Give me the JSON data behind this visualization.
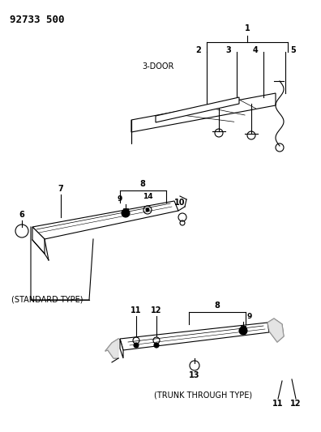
{
  "bg_color": "#ffffff",
  "line_color": "#000000",
  "fig_width": 3.96,
  "fig_height": 5.33,
  "dpi": 100,
  "header": "92733 500",
  "door_label": "3-DOOR",
  "standard_label": "(STANDARD TYPE)",
  "trunk_label": "(TRUNK THROUGH TYPE)"
}
